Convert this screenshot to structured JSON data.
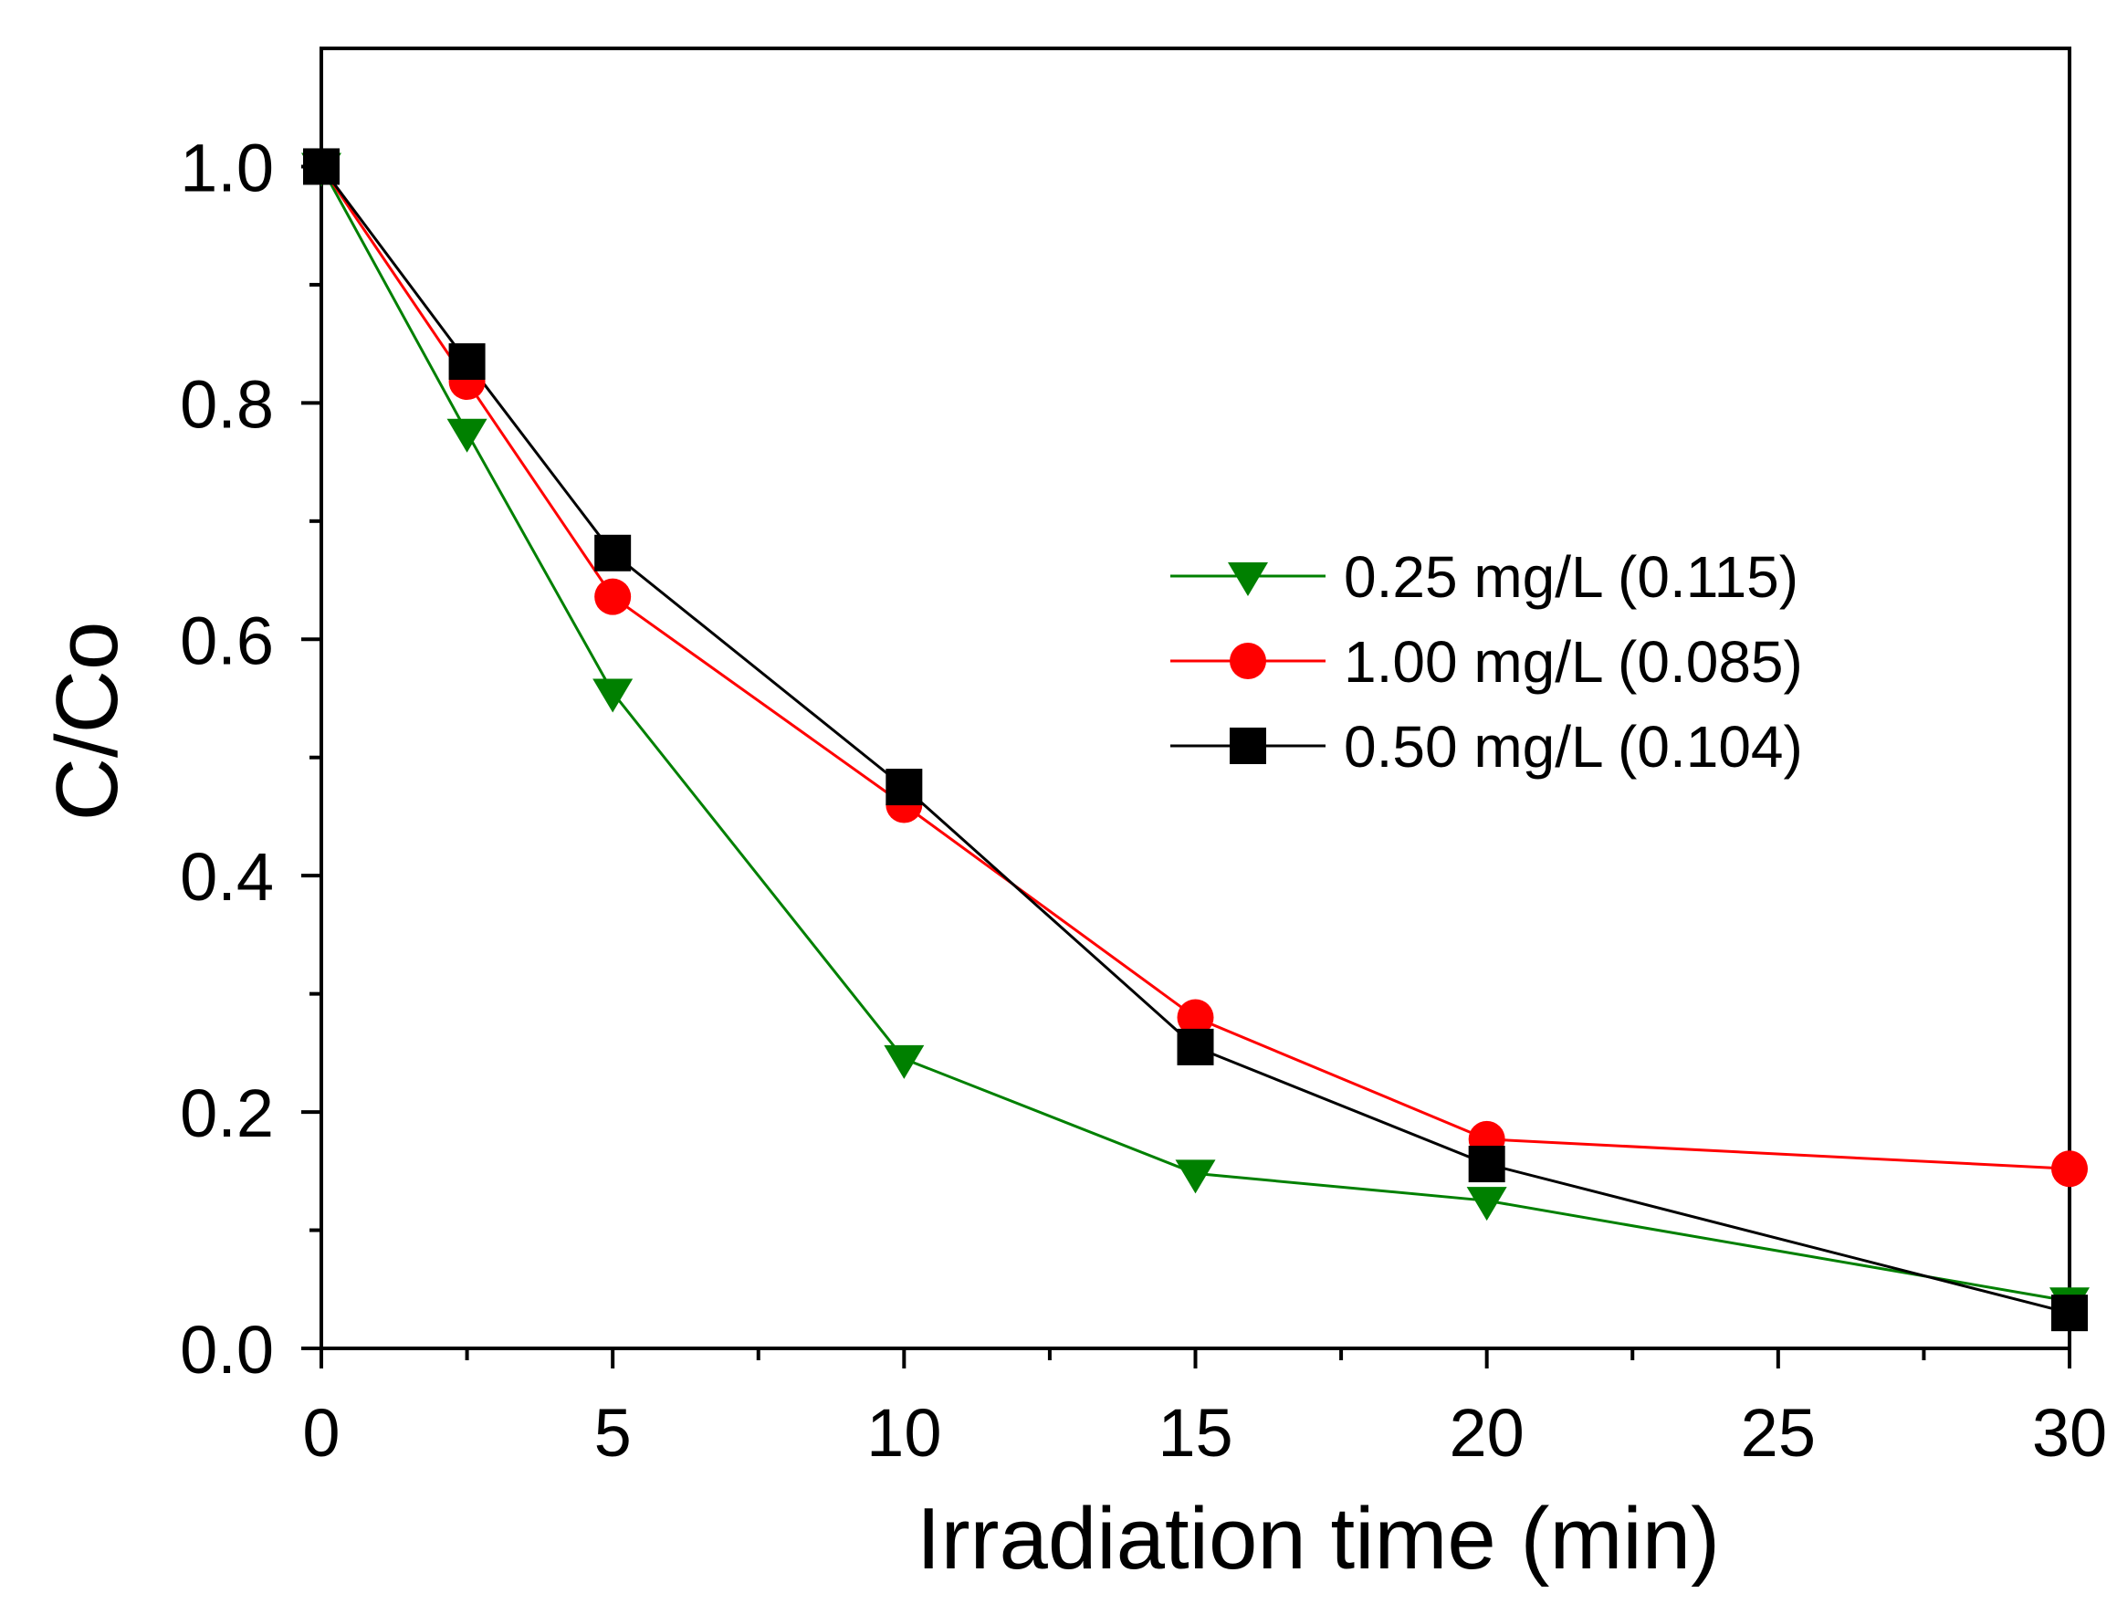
{
  "chart_data": {
    "type": "line",
    "title": "",
    "xlabel": "Irradiation time (min)",
    "ylabel": "C/Co",
    "xlim": [
      0,
      30
    ],
    "ylim": [
      0,
      1.1
    ],
    "x_ticks": [
      "0",
      "5",
      "10",
      "15",
      "20",
      "25",
      "30"
    ],
    "y_ticks": [
      "0.0",
      "0.2",
      "0.4",
      "0.6",
      "0.8",
      "1.0"
    ],
    "legend_position": "center-right",
    "series": [
      {
        "name": "0.25 mg/L (0.115)",
        "color": "#008000",
        "marker": "triangle-down",
        "x": [
          0,
          2.5,
          5,
          10,
          15,
          20,
          30
        ],
        "y": [
          1.0,
          0.775,
          0.555,
          0.245,
          0.148,
          0.125,
          0.04
        ]
      },
      {
        "name": "1.00 mg/L (0.085)",
        "color": "#ff0000",
        "marker": "circle",
        "x": [
          0,
          2.5,
          5,
          10,
          15,
          20,
          30
        ],
        "y": [
          1.0,
          0.818,
          0.636,
          0.46,
          0.28,
          0.177,
          0.152
        ]
      },
      {
        "name": "0.50 mg/L (0.104)",
        "color": "#000000",
        "marker": "square",
        "x": [
          0,
          2.5,
          5,
          10,
          15,
          20,
          30
        ],
        "y": [
          1.0,
          0.835,
          0.673,
          0.475,
          0.255,
          0.156,
          0.03
        ]
      }
    ]
  }
}
